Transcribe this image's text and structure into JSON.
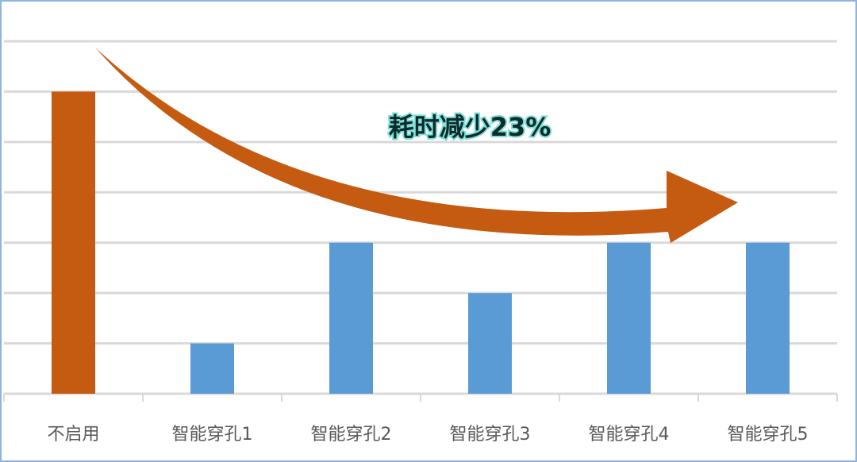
{
  "chart_data": {
    "type": "bar",
    "categories": [
      "不启用",
      "智能穿孔1",
      "智能穿孔2",
      "智能穿孔3",
      "智能穿孔4",
      "智能穿孔5"
    ],
    "values": [
      6,
      1,
      3,
      2,
      3,
      3
    ],
    "colors": [
      "#c55a11",
      "#5b9bd5",
      "#5b9bd5",
      "#5b9bd5",
      "#5b9bd5",
      "#5b9bd5"
    ],
    "ylim": [
      0,
      7
    ],
    "yticks": [
      0,
      1,
      2,
      3,
      4,
      5,
      6,
      7
    ],
    "grid": true,
    "annotation": "耗时减少23%"
  }
}
